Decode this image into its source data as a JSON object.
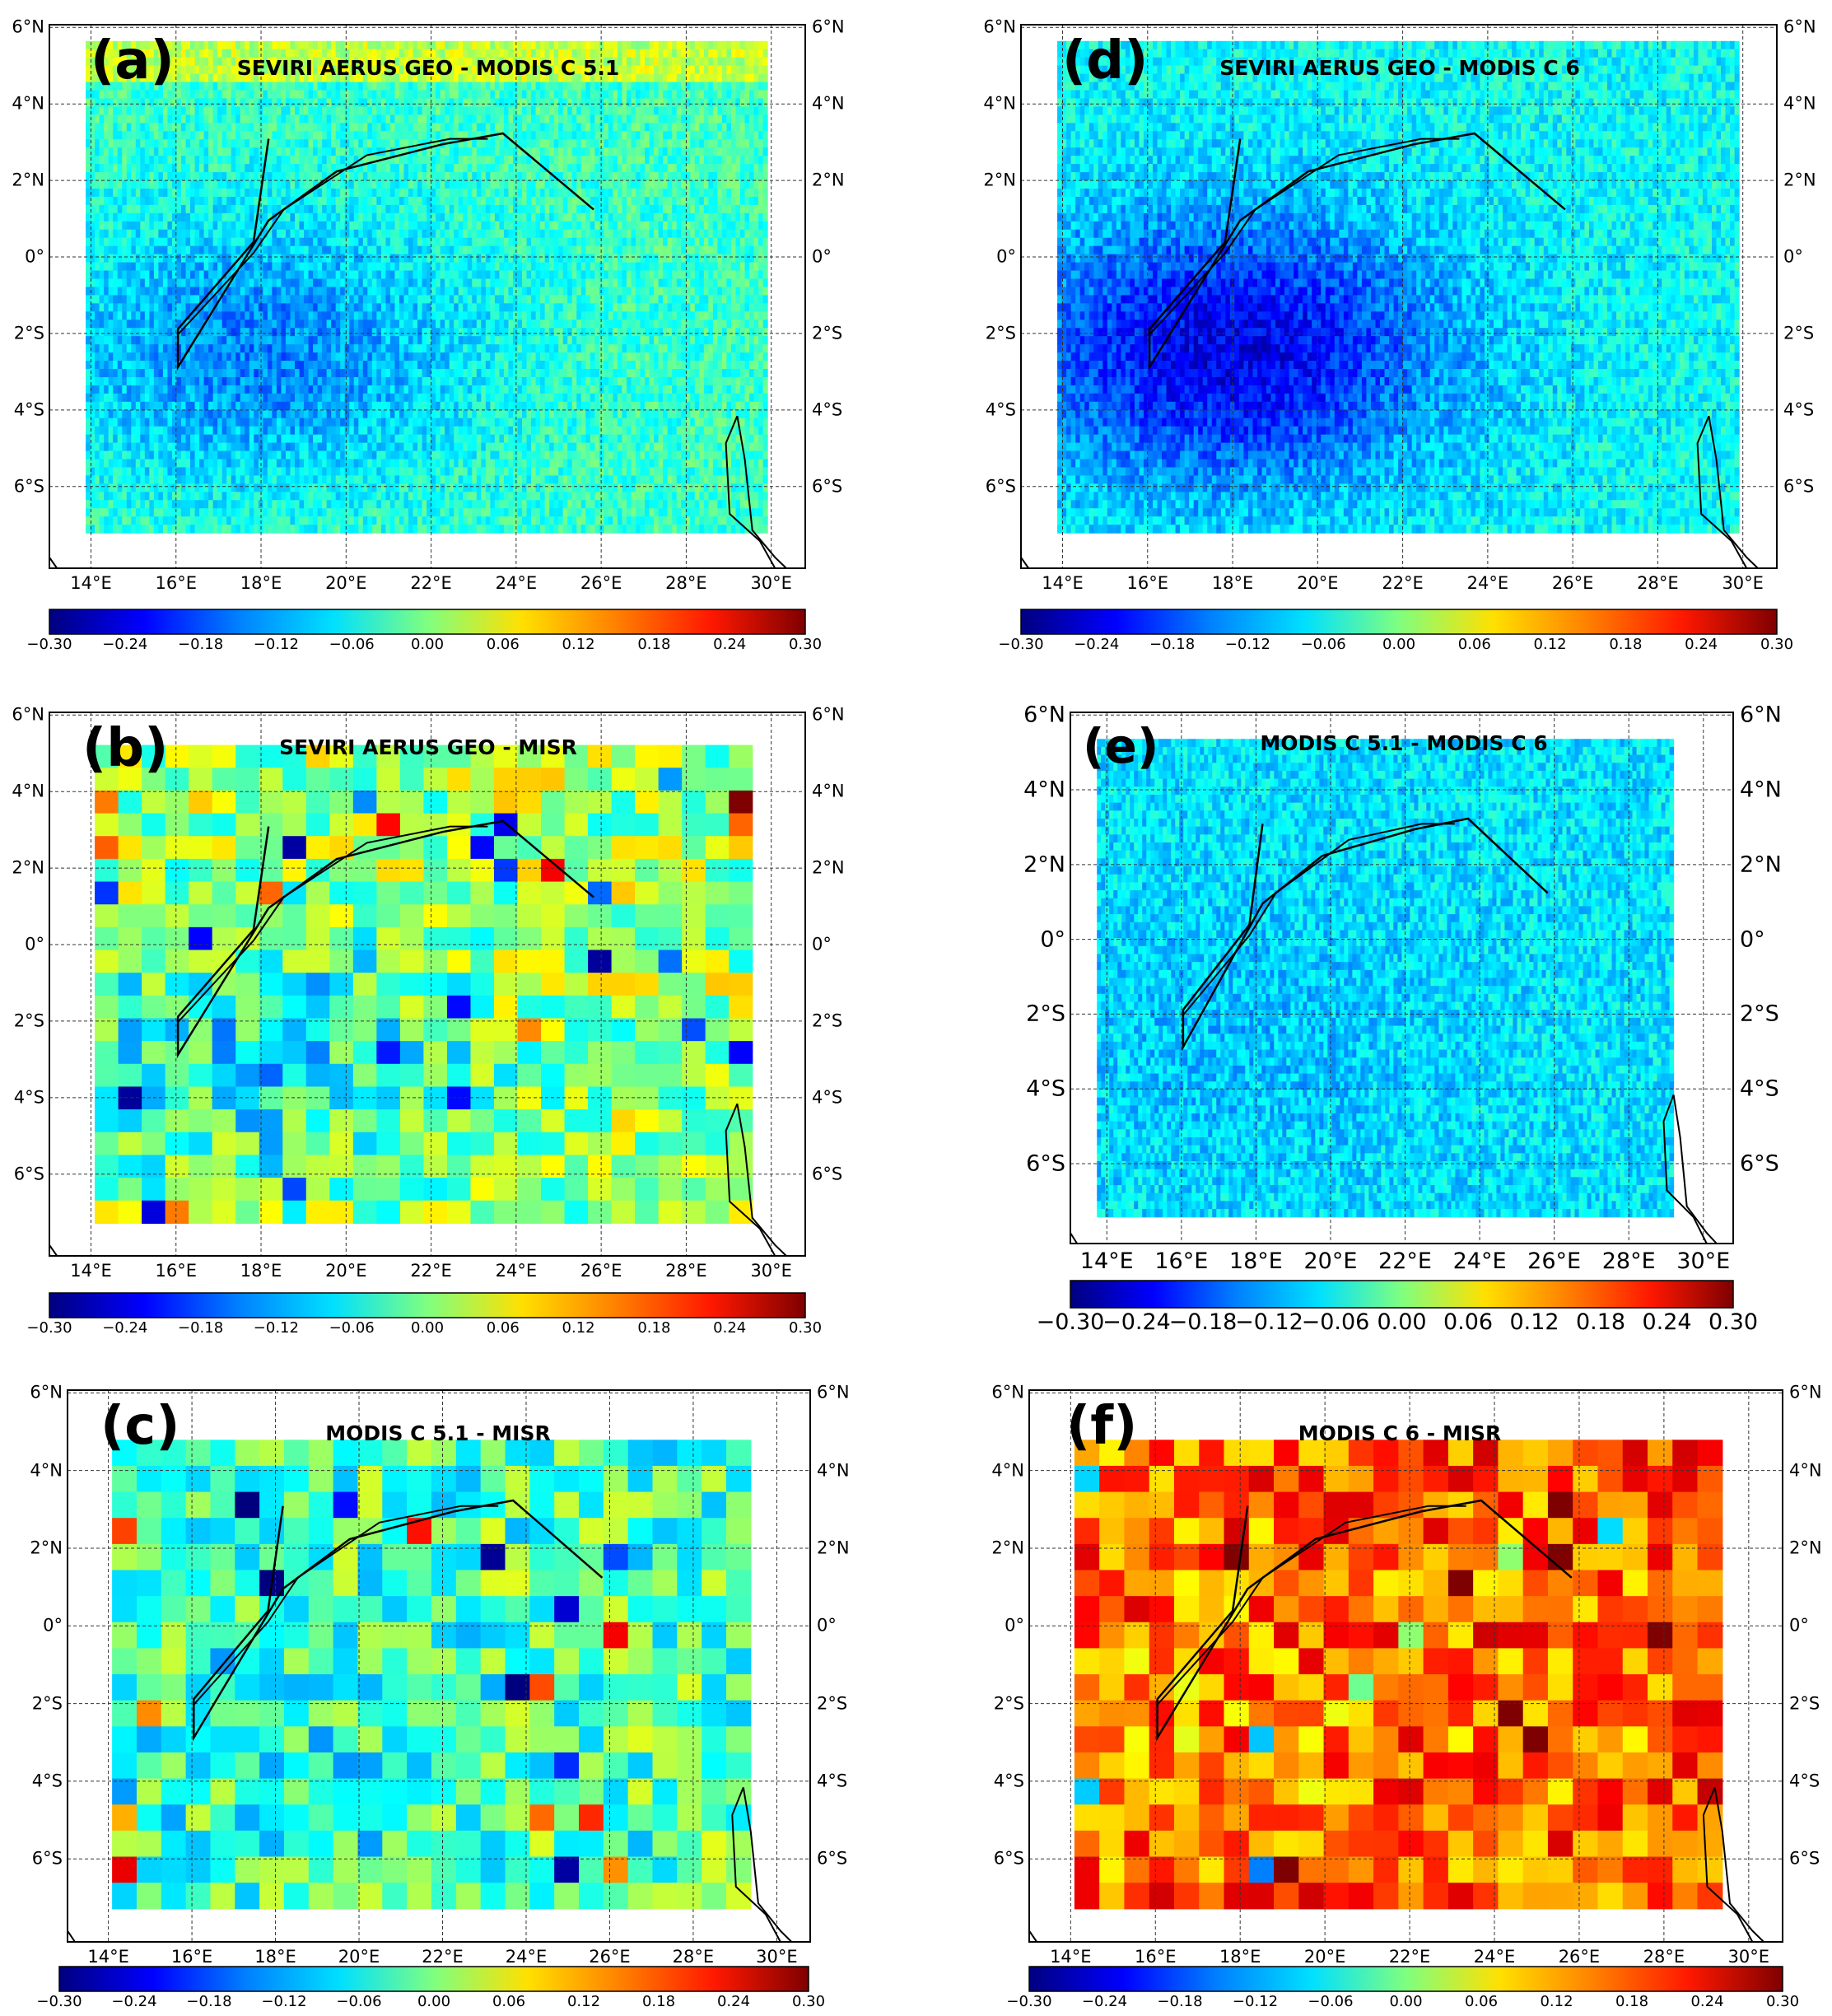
{
  "figure": {
    "colorbar": {
      "ticks": [
        "−0.30",
        "−0.24",
        "−0.18",
        "−0.12",
        "−0.06",
        "0.00",
        "0.06",
        "0.12",
        "0.18",
        "0.24",
        "0.30"
      ],
      "range": [
        -0.3,
        0.3
      ],
      "colors": [
        "#00007f",
        "#0000ff",
        "#0080ff",
        "#00e0ff",
        "#7fff7f",
        "#ffe000",
        "#ff8000",
        "#ff1800",
        "#7f0000"
      ]
    },
    "lat_ticks": [
      "6°N",
      "4°N",
      "2°N",
      "0°",
      "2°S",
      "4°S",
      "6°S"
    ],
    "lon_ticks": [
      "14°E",
      "16°E",
      "18°E",
      "20°E",
      "22°E",
      "24°E",
      "26°E",
      "28°E",
      "30°E"
    ]
  },
  "chart_data": [
    {
      "id": "a",
      "type": "heatmap",
      "label": "(a)",
      "title": "SEVIRI AERUS GEO - MODIS C 5.1",
      "field_mean": -0.04,
      "low_region_mean": -0.15
    },
    {
      "id": "b",
      "type": "heatmap",
      "label": "(b)",
      "title": "SEVIRI AERUS GEO - MISR",
      "field_mean": 0.02,
      "low_region_mean": -0.08
    },
    {
      "id": "c",
      "type": "heatmap",
      "label": "(c)",
      "title": "MODIS C 5.1 - MISR",
      "field_mean": -0.03,
      "low_region_mean": -0.06
    },
    {
      "id": "d",
      "type": "heatmap",
      "label": "(d)",
      "title": "SEVIRI AERUS GEO - MODIS C 6",
      "field_mean": -0.07,
      "low_region_mean": -0.24
    },
    {
      "id": "e",
      "type": "heatmap",
      "label": "(e)",
      "title": "MODIS C 5.1 - MODIS C 6",
      "field_mean": -0.09,
      "low_region_mean": -0.11
    },
    {
      "id": "f",
      "type": "heatmap",
      "label": "(f)",
      "title": "MODIS C 6 - MISR",
      "field_mean": 0.17,
      "low_region_mean": 0.14
    }
  ]
}
